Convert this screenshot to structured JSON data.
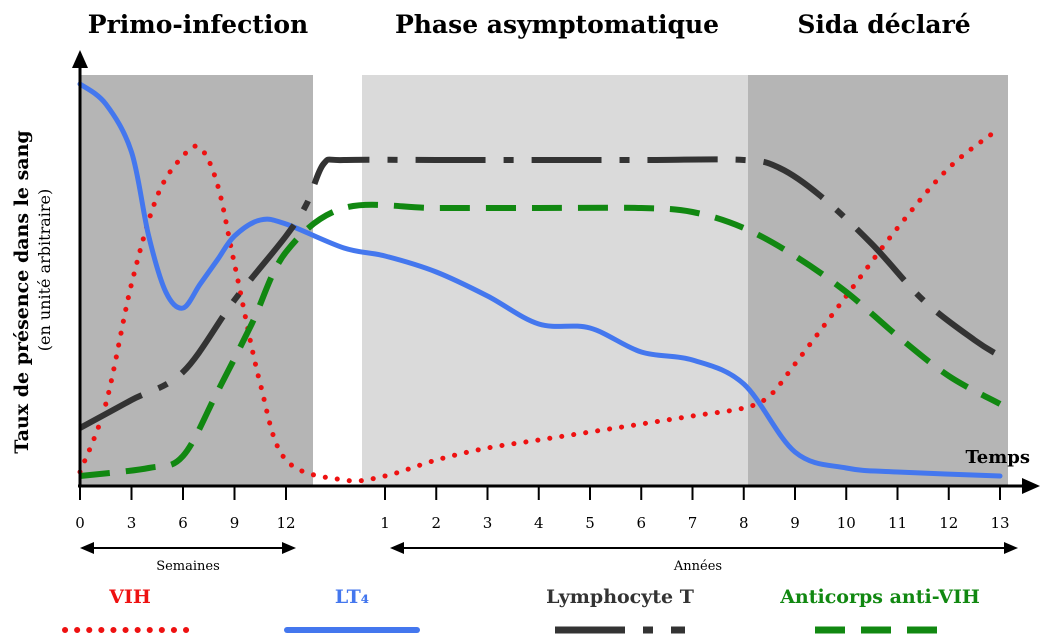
{
  "chart_data": {
    "type": "line",
    "phases": [
      {
        "title": "Primo-infection",
        "x_range": [
          0,
          13
        ]
      },
      {
        "title": "Phase asymptomatique",
        "x_range": [
          1,
          8
        ]
      },
      {
        "title": "Sida déclaré",
        "x_range": [
          8,
          13
        ]
      }
    ],
    "ylabel": "Taux de présence dans le sang",
    "ylabel_sub": "(en unité arbitraire)",
    "xlabel": "Temps",
    "x_ticks_weeks": [
      "0",
      "3",
      "6",
      "9",
      "12"
    ],
    "x_ticks_years": [
      "1",
      "2",
      "3",
      "4",
      "5",
      "6",
      "7",
      "8",
      "9",
      "10",
      "11",
      "12",
      "13"
    ],
    "x_units": {
      "weeks": "Semaines",
      "years": "Années"
    },
    "ylim": [
      0,
      100
    ],
    "series": [
      {
        "name": "VIH",
        "color": "#ee1111",
        "style": "dotted",
        "points": [
          {
            "seg": "w",
            "x": 0,
            "y": 3
          },
          {
            "seg": "w",
            "x": 1.5,
            "y": 20
          },
          {
            "seg": "w",
            "x": 3,
            "y": 50
          },
          {
            "seg": "w",
            "x": 4.5,
            "y": 72
          },
          {
            "seg": "w",
            "x": 6,
            "y": 82
          },
          {
            "seg": "w",
            "x": 7,
            "y": 84
          },
          {
            "seg": "w",
            "x": 8,
            "y": 75
          },
          {
            "seg": "w",
            "x": 9,
            "y": 55
          },
          {
            "seg": "w",
            "x": 10.5,
            "y": 25
          },
          {
            "seg": "w",
            "x": 12,
            "y": 6
          },
          {
            "seg": "y",
            "x": 0.2,
            "y": 1
          },
          {
            "seg": "y",
            "x": 1,
            "y": 2
          },
          {
            "seg": "y",
            "x": 2,
            "y": 6
          },
          {
            "seg": "y",
            "x": 3,
            "y": 9
          },
          {
            "seg": "y",
            "x": 4,
            "y": 11
          },
          {
            "seg": "y",
            "x": 5,
            "y": 13
          },
          {
            "seg": "y",
            "x": 6,
            "y": 15
          },
          {
            "seg": "y",
            "x": 7,
            "y": 17
          },
          {
            "seg": "y",
            "x": 8,
            "y": 19
          },
          {
            "seg": "y",
            "x": 8.5,
            "y": 22
          },
          {
            "seg": "y",
            "x": 9,
            "y": 30
          },
          {
            "seg": "y",
            "x": 10,
            "y": 47
          },
          {
            "seg": "y",
            "x": 11,
            "y": 64
          },
          {
            "seg": "y",
            "x": 12,
            "y": 79
          },
          {
            "seg": "y",
            "x": 13,
            "y": 89
          }
        ]
      },
      {
        "name": "LT₄",
        "color": "#4477ee",
        "style": "solid",
        "points": [
          {
            "seg": "w",
            "x": 0,
            "y": 100
          },
          {
            "seg": "w",
            "x": 1.5,
            "y": 95
          },
          {
            "seg": "w",
            "x": 3,
            "y": 83
          },
          {
            "seg": "w",
            "x": 4,
            "y": 62
          },
          {
            "seg": "w",
            "x": 5,
            "y": 48
          },
          {
            "seg": "w",
            "x": 6,
            "y": 44
          },
          {
            "seg": "w",
            "x": 7,
            "y": 50
          },
          {
            "seg": "w",
            "x": 8,
            "y": 56
          },
          {
            "seg": "w",
            "x": 9,
            "y": 62
          },
          {
            "seg": "w",
            "x": 10.5,
            "y": 66
          },
          {
            "seg": "w",
            "x": 12,
            "y": 65
          },
          {
            "seg": "y",
            "x": 0.2,
            "y": 59
          },
          {
            "seg": "y",
            "x": 1,
            "y": 57
          },
          {
            "seg": "y",
            "x": 2,
            "y": 53
          },
          {
            "seg": "y",
            "x": 3,
            "y": 47
          },
          {
            "seg": "y",
            "x": 4,
            "y": 40
          },
          {
            "seg": "y",
            "x": 5,
            "y": 39
          },
          {
            "seg": "y",
            "x": 6,
            "y": 33
          },
          {
            "seg": "y",
            "x": 7,
            "y": 31
          },
          {
            "seg": "y",
            "x": 8,
            "y": 25
          },
          {
            "seg": "y",
            "x": 9,
            "y": 8
          },
          {
            "seg": "y",
            "x": 10,
            "y": 4
          },
          {
            "seg": "y",
            "x": 11,
            "y": 3
          },
          {
            "seg": "y",
            "x": 13,
            "y": 2
          }
        ]
      },
      {
        "name": "Lymphocyte T",
        "color": "#333333",
        "style": "dash-dot",
        "points": [
          {
            "seg": "w",
            "x": 0,
            "y": 14
          },
          {
            "seg": "w",
            "x": 3,
            "y": 21
          },
          {
            "seg": "w",
            "x": 6,
            "y": 28
          },
          {
            "seg": "w",
            "x": 9,
            "y": 46
          },
          {
            "seg": "w",
            "x": 12,
            "y": 62
          },
          {
            "seg": "w",
            "x": 13.2,
            "y": 70
          },
          {
            "seg": "y",
            "x": -0.2,
            "y": 80
          },
          {
            "seg": "y",
            "x": 0.2,
            "y": 81
          },
          {
            "seg": "y",
            "x": 2,
            "y": 81
          },
          {
            "seg": "y",
            "x": 4,
            "y": 81
          },
          {
            "seg": "y",
            "x": 6,
            "y": 81
          },
          {
            "seg": "y",
            "x": 8,
            "y": 81
          },
          {
            "seg": "y",
            "x": 8.7,
            "y": 79
          },
          {
            "seg": "y",
            "x": 9.5,
            "y": 72
          },
          {
            "seg": "y",
            "x": 10.5,
            "y": 60
          },
          {
            "seg": "y",
            "x": 11.5,
            "y": 46
          },
          {
            "seg": "y",
            "x": 12.5,
            "y": 36
          },
          {
            "seg": "y",
            "x": 13,
            "y": 32
          }
        ]
      },
      {
        "name": "Anticorps anti-VIH",
        "color": "#118811",
        "style": "dashed",
        "points": [
          {
            "seg": "w",
            "x": 0,
            "y": 2
          },
          {
            "seg": "w",
            "x": 4,
            "y": 4
          },
          {
            "seg": "w",
            "x": 6,
            "y": 7
          },
          {
            "seg": "w",
            "x": 8,
            "y": 23
          },
          {
            "seg": "w",
            "x": 10,
            "y": 40
          },
          {
            "seg": "w",
            "x": 12,
            "y": 58
          },
          {
            "seg": "y",
            "x": 0.2,
            "y": 69
          },
          {
            "seg": "y",
            "x": 2,
            "y": 69
          },
          {
            "seg": "y",
            "x": 4,
            "y": 69
          },
          {
            "seg": "y",
            "x": 6,
            "y": 69
          },
          {
            "seg": "y",
            "x": 7,
            "y": 68
          },
          {
            "seg": "y",
            "x": 8,
            "y": 64
          },
          {
            "seg": "y",
            "x": 9,
            "y": 57
          },
          {
            "seg": "y",
            "x": 10,
            "y": 48
          },
          {
            "seg": "y",
            "x": 11,
            "y": 37
          },
          {
            "seg": "y",
            "x": 12,
            "y": 27
          },
          {
            "seg": "y",
            "x": 13,
            "y": 20
          }
        ]
      }
    ],
    "grid": false,
    "legend_position": "bottom"
  }
}
